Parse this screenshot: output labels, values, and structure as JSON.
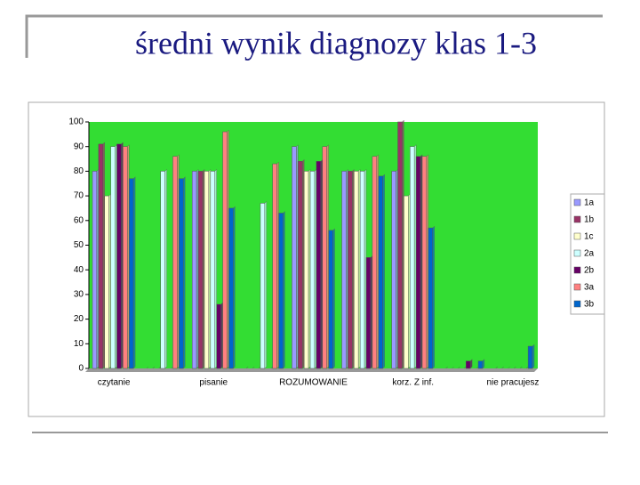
{
  "chart_data": {
    "type": "bar",
    "title": "średni wynik diagnozy klas 1-3",
    "categories": [
      "czytanie",
      null,
      "pisanie",
      null,
      "ROZUMOWANIE",
      null,
      "korz. Z inf.",
      null,
      "nie pracujesz"
    ],
    "series": [
      {
        "name": "1a",
        "color": "#9999ff",
        "values": [
          80,
          0,
          80,
          0,
          90,
          80,
          80,
          0,
          0
        ]
      },
      {
        "name": "1b",
        "color": "#993366",
        "values": [
          91,
          0,
          80,
          0,
          84,
          80,
          100,
          0,
          0
        ]
      },
      {
        "name": "1c",
        "color": "#ffffcc",
        "values": [
          70,
          0,
          80,
          0,
          80,
          80,
          70,
          0,
          0
        ]
      },
      {
        "name": "2a",
        "color": "#ccffff",
        "values": [
          90,
          80,
          80,
          67,
          80,
          80,
          90,
          0,
          0
        ]
      },
      {
        "name": "2b",
        "color": "#660066",
        "values": [
          91,
          0,
          26,
          0,
          84,
          45,
          86,
          3,
          0
        ]
      },
      {
        "name": "3a",
        "color": "#ff8080",
        "values": [
          90,
          86,
          96,
          83,
          90,
          86,
          86,
          0,
          0
        ]
      },
      {
        "name": "3b",
        "color": "#0066cc",
        "values": [
          77,
          77,
          65,
          63,
          56,
          78,
          57,
          3,
          9
        ]
      }
    ],
    "ylim": [
      0,
      100
    ],
    "yticks": [
      0,
      10,
      20,
      30,
      40,
      50,
      60,
      70,
      80,
      90,
      100
    ],
    "plot_background": "#33dd33",
    "legend": "right"
  }
}
